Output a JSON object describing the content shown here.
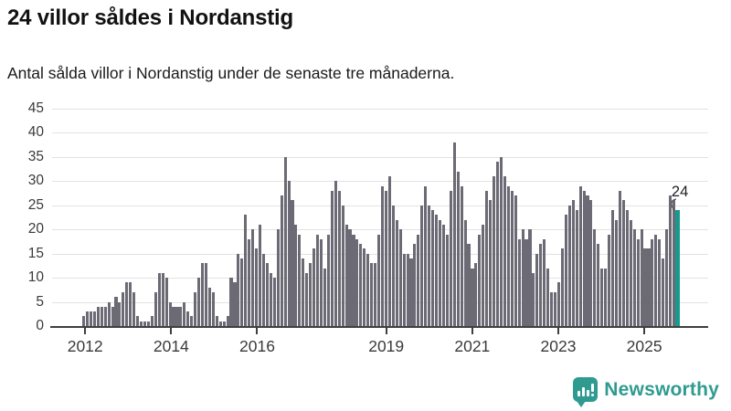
{
  "header": {
    "title": "24 villor såldes i Nordanstig",
    "subtitle": "Antal sålda villor i Nordanstig under de senaste tre månaderna."
  },
  "chart_data": {
    "type": "bar",
    "title": "24 villor såldes i Nordanstig",
    "xlabel": "",
    "ylabel": "",
    "frequency": "monthly",
    "x_start": "2012-01",
    "x_end": "2025-10",
    "ylim": [
      0,
      45
    ],
    "grid": true,
    "y_ticks": [
      0,
      5,
      10,
      15,
      20,
      25,
      30,
      35,
      40,
      45
    ],
    "x_tick_years": [
      "2012",
      "2014",
      "2016",
      "2019",
      "2021",
      "2023",
      "2025"
    ],
    "values": [
      2,
      3,
      3,
      3,
      4,
      4,
      4,
      5,
      4,
      6,
      5,
      7,
      9,
      9,
      7,
      2,
      1,
      1,
      1,
      2,
      7,
      11,
      11,
      10,
      5,
      4,
      4,
      4,
      5,
      3,
      2,
      7,
      10,
      13,
      13,
      8,
      7,
      2,
      1,
      1,
      2,
      10,
      9,
      15,
      14,
      23,
      18,
      20,
      16,
      21,
      15,
      13,
      11,
      10,
      20,
      27,
      35,
      30,
      26,
      21,
      19,
      14,
      11,
      13,
      16,
      19,
      18,
      12,
      19,
      28,
      30,
      28,
      25,
      21,
      20,
      19,
      18,
      17,
      16,
      15,
      13,
      13,
      19,
      29,
      28,
      31,
      25,
      22,
      20,
      15,
      15,
      14,
      17,
      19,
      25,
      29,
      25,
      24,
      23,
      22,
      21,
      19,
      28,
      38,
      32,
      29,
      22,
      17,
      12,
      13,
      19,
      21,
      28,
      26,
      31,
      34,
      35,
      31,
      29,
      28,
      27,
      18,
      20,
      18,
      20,
      11,
      15,
      17,
      18,
      12,
      7,
      7,
      9,
      16,
      23,
      25,
      26,
      24,
      29,
      28,
      27,
      26,
      20,
      17,
      12,
      12,
      19,
      24,
      22,
      28,
      26,
      24,
      22,
      20,
      18,
      20,
      16,
      16,
      18,
      19,
      18,
      14,
      20,
      27,
      26,
      24
    ],
    "bar_color": "#6c6a75",
    "highlight_last": {
      "value": 24,
      "label": "24",
      "color": "#17998e"
    }
  },
  "footer": {
    "brand": "Newsworthy",
    "brand_color": "#2f9b90",
    "logo_icon": "newsworthy-chart-speech-bubble-icon"
  },
  "colors": {
    "grid": "#e2e2e2",
    "axis": "#3f3f3f",
    "tick_text": "#3a3a3a",
    "annotation_text": "#222222"
  }
}
